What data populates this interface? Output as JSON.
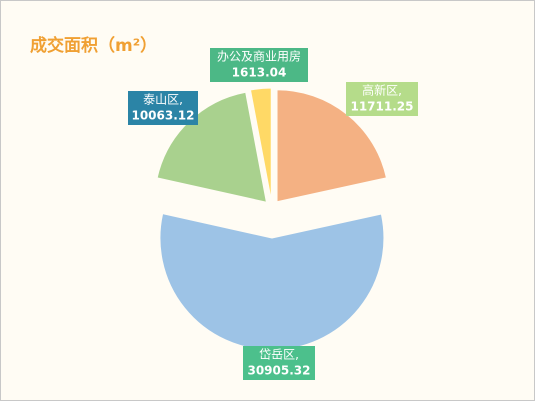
{
  "chart_data": {
    "type": "pie",
    "title": "成交面积（m²）",
    "categories": [
      "高新区,",
      "岱岳区,",
      "泰山区,",
      "办公及商业用房"
    ],
    "values": [
      11711.25,
      30905.32,
      10063.12,
      1613.04
    ],
    "colors": [
      "#f4b183",
      "#9dc3e6",
      "#a9d18e",
      "#ffd966"
    ],
    "label_colors": [
      "#b5dc8a",
      "#4cc08c",
      "#2b84a6",
      "#4cb886"
    ]
  }
}
